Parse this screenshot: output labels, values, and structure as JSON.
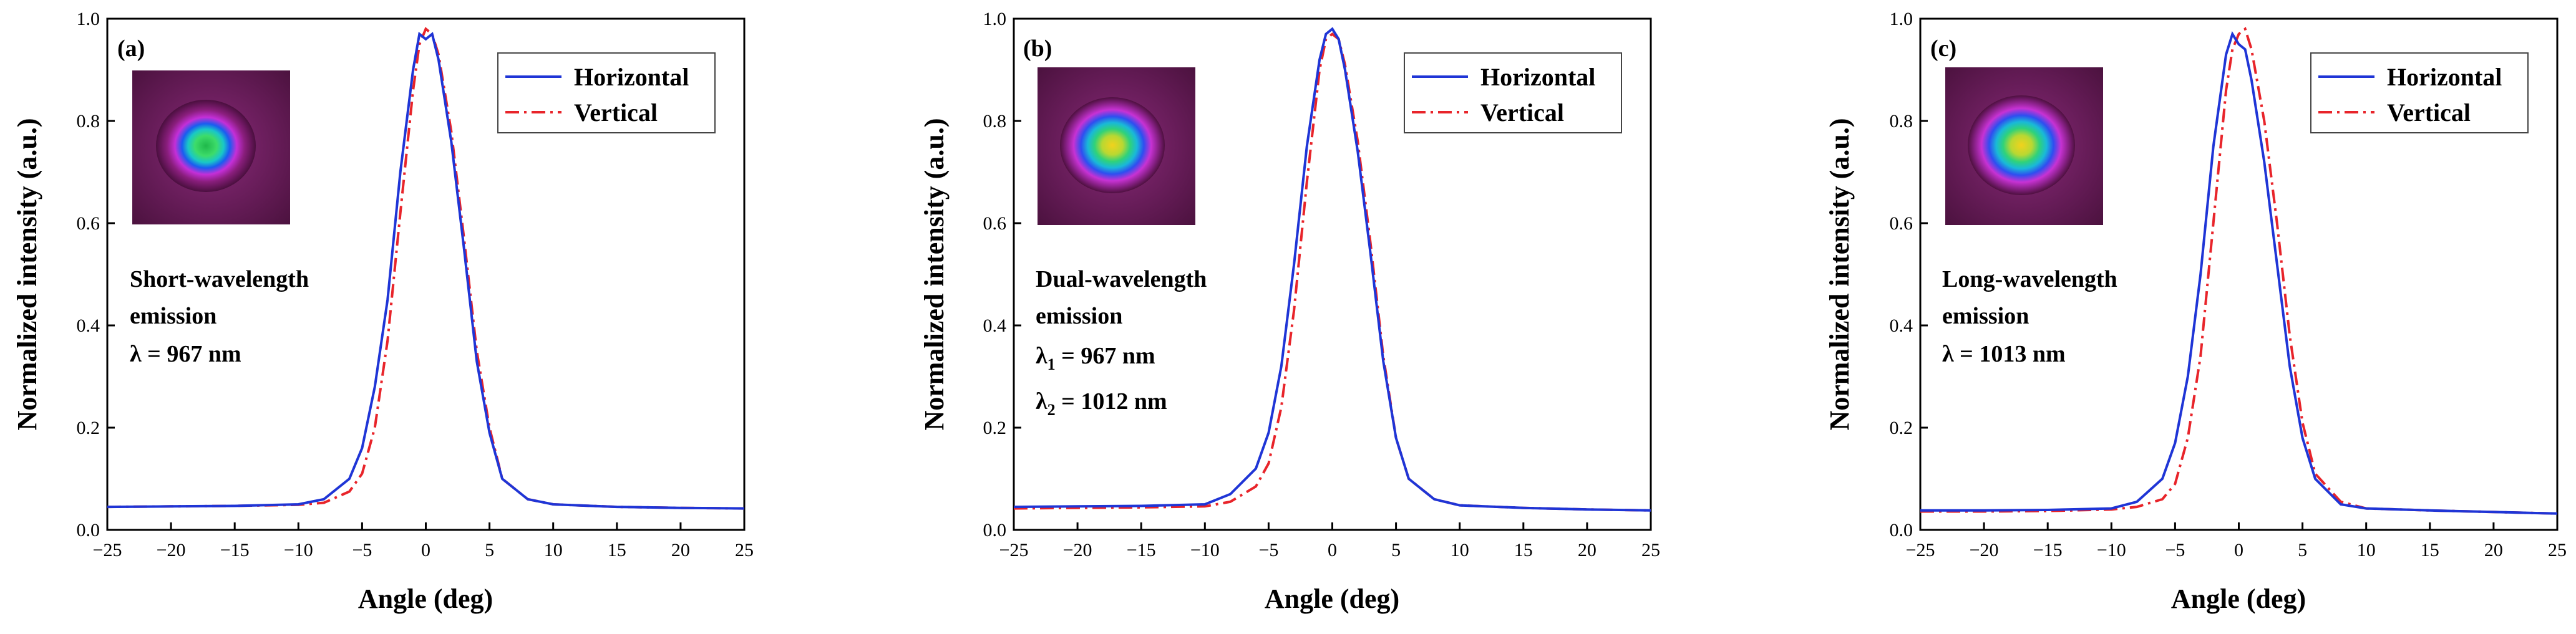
{
  "chart_data": [
    {
      "type": "line",
      "panel_label": "(a)",
      "xlabel": "Angle (deg)",
      "ylabel": "Normalized intensity (a.u.)",
      "xlim": [
        -25,
        25
      ],
      "ylim": [
        0,
        1.0
      ],
      "xticks": [
        -25,
        -20,
        -15,
        -10,
        -5,
        0,
        5,
        10,
        15,
        20,
        25
      ],
      "yticks": [
        0.0,
        0.2,
        0.4,
        0.6,
        0.8,
        1.0
      ],
      "xtick_labels": [
        "−25",
        "−20",
        "−15",
        "−10",
        "−5",
        "0",
        "5",
        "10",
        "15",
        "20",
        "25"
      ],
      "ytick_labels": [
        "0.0",
        "0.2",
        "0.4",
        "0.6",
        "0.8",
        "1.0"
      ],
      "legend": {
        "position": "top-right",
        "entries": [
          "Horizontal",
          "Vertical"
        ]
      },
      "annotation": {
        "line1": "Short-wavelength",
        "line2": "emission",
        "line3": "λ = 967 nm"
      },
      "inset": "beam-profile",
      "series": [
        {
          "name": "Horizontal",
          "color": "#1f35d6",
          "style": "solid",
          "x": [
            -25,
            -20,
            -15,
            -10,
            -8,
            -6,
            -5,
            -4,
            -3,
            -2,
            -1,
            -0.5,
            0,
            0.5,
            1,
            2,
            3,
            4,
            5,
            6,
            8,
            10,
            15,
            20,
            25
          ],
          "y": [
            0.045,
            0.046,
            0.047,
            0.05,
            0.06,
            0.1,
            0.16,
            0.28,
            0.45,
            0.7,
            0.9,
            0.97,
            0.96,
            0.97,
            0.92,
            0.76,
            0.55,
            0.33,
            0.19,
            0.1,
            0.06,
            0.05,
            0.045,
            0.043,
            0.042
          ]
        },
        {
          "name": "Vertical",
          "color": "#e8242a",
          "style": "dashdot",
          "x": [
            -25,
            -20,
            -15,
            -10,
            -8,
            -6,
            -5,
            -4,
            -3,
            -2,
            -1,
            -0.5,
            0,
            0.5,
            1,
            2,
            3,
            4,
            5,
            6,
            8,
            10,
            15,
            20,
            25
          ],
          "y": [
            0.045,
            0.046,
            0.047,
            0.049,
            0.053,
            0.075,
            0.11,
            0.2,
            0.37,
            0.62,
            0.86,
            0.95,
            0.98,
            0.97,
            0.93,
            0.78,
            0.57,
            0.35,
            0.2,
            0.1,
            0.06,
            0.05,
            0.045,
            0.043,
            0.042
          ]
        }
      ]
    },
    {
      "type": "line",
      "panel_label": "(b)",
      "xlabel": "Angle (deg)",
      "ylabel": "Normalized intensity (a.u.)",
      "xlim": [
        -25,
        25
      ],
      "ylim": [
        0,
        1.0
      ],
      "xticks": [
        -25,
        -20,
        -15,
        -10,
        -5,
        0,
        5,
        10,
        15,
        20,
        25
      ],
      "yticks": [
        0.0,
        0.2,
        0.4,
        0.6,
        0.8,
        1.0
      ],
      "xtick_labels": [
        "−25",
        "−20",
        "−15",
        "−10",
        "−5",
        "0",
        "5",
        "10",
        "15",
        "20",
        "25"
      ],
      "ytick_labels": [
        "0.0",
        "0.2",
        "0.4",
        "0.6",
        "0.8",
        "1.0"
      ],
      "legend": {
        "position": "top-right",
        "entries": [
          "Horizontal",
          "Vertical"
        ]
      },
      "annotation": {
        "line1": "Dual-wavelength",
        "line2": "emission",
        "lambda1_sym": "λ",
        "lambda1_sub": "1",
        "lambda1_val": " = 967 nm",
        "lambda2_sym": "λ",
        "lambda2_sub": "2",
        "lambda2_val": " = 1012 nm"
      },
      "inset": "beam-profile",
      "series": [
        {
          "name": "Horizontal",
          "color": "#1f35d6",
          "style": "solid",
          "x": [
            -25,
            -20,
            -15,
            -10,
            -8,
            -6,
            -5,
            -4,
            -3,
            -2,
            -1,
            -0.5,
            0,
            0.5,
            1,
            2,
            3,
            4,
            5,
            6,
            8,
            10,
            15,
            20,
            25
          ],
          "y": [
            0.045,
            0.046,
            0.047,
            0.05,
            0.07,
            0.12,
            0.19,
            0.32,
            0.52,
            0.75,
            0.92,
            0.97,
            0.98,
            0.96,
            0.9,
            0.74,
            0.54,
            0.33,
            0.18,
            0.1,
            0.06,
            0.048,
            0.043,
            0.04,
            0.038
          ]
        },
        {
          "name": "Vertical",
          "color": "#e8242a",
          "style": "dashdot",
          "x": [
            -25,
            -20,
            -15,
            -10,
            -8,
            -6,
            -5,
            -4,
            -3,
            -2,
            -1,
            -0.5,
            0,
            0.5,
            1,
            2,
            3,
            4,
            5,
            6,
            8,
            10,
            15,
            20,
            25
          ],
          "y": [
            0.042,
            0.043,
            0.044,
            0.046,
            0.055,
            0.085,
            0.13,
            0.24,
            0.43,
            0.68,
            0.9,
            0.96,
            0.97,
            0.96,
            0.91,
            0.76,
            0.56,
            0.34,
            0.18,
            0.1,
            0.06,
            0.048,
            0.043,
            0.04,
            0.038
          ]
        }
      ]
    },
    {
      "type": "line",
      "panel_label": "(c)",
      "xlabel": "Angle (deg)",
      "ylabel": "Normalized intensity (a.u.)",
      "xlim": [
        -25,
        25
      ],
      "ylim": [
        0,
        1.0
      ],
      "xticks": [
        -25,
        -20,
        -15,
        -10,
        -5,
        0,
        5,
        10,
        15,
        20,
        25
      ],
      "yticks": [
        0.0,
        0.2,
        0.4,
        0.6,
        0.8,
        1.0
      ],
      "xtick_labels": [
        "−25",
        "−20",
        "−15",
        "−10",
        "−5",
        "0",
        "5",
        "10",
        "15",
        "20",
        "25"
      ],
      "ytick_labels": [
        "0.0",
        "0.2",
        "0.4",
        "0.6",
        "0.8",
        "1.0"
      ],
      "legend": {
        "position": "top-right",
        "entries": [
          "Horizontal",
          "Vertical"
        ]
      },
      "annotation": {
        "line1": "Long-wavelength",
        "line2": "emission",
        "line3": "λ = 1013 nm"
      },
      "inset": "beam-profile",
      "series": [
        {
          "name": "Horizontal",
          "color": "#1f35d6",
          "style": "solid",
          "x": [
            -25,
            -20,
            -15,
            -10,
            -8,
            -6,
            -5,
            -4,
            -3,
            -2,
            -1,
            -0.5,
            0,
            0.5,
            1,
            2,
            3,
            4,
            5,
            6,
            8,
            10,
            15,
            20,
            25
          ],
          "y": [
            0.038,
            0.038,
            0.039,
            0.042,
            0.055,
            0.1,
            0.17,
            0.3,
            0.5,
            0.75,
            0.93,
            0.97,
            0.95,
            0.94,
            0.88,
            0.72,
            0.52,
            0.32,
            0.18,
            0.1,
            0.05,
            0.042,
            0.038,
            0.035,
            0.032
          ]
        },
        {
          "name": "Vertical",
          "color": "#e8242a",
          "style": "dashdot",
          "x": [
            -25,
            -20,
            -15,
            -10,
            -8,
            -6,
            -5,
            -4,
            -3,
            -2,
            -1,
            -0.5,
            0,
            0.5,
            1,
            2,
            3,
            4,
            5,
            6,
            8,
            10,
            15,
            20,
            25
          ],
          "y": [
            0.036,
            0.036,
            0.037,
            0.04,
            0.045,
            0.06,
            0.09,
            0.18,
            0.34,
            0.6,
            0.86,
            0.94,
            0.97,
            0.98,
            0.94,
            0.8,
            0.6,
            0.38,
            0.21,
            0.11,
            0.055,
            0.042,
            0.038,
            0.035,
            0.032
          ]
        }
      ]
    }
  ]
}
